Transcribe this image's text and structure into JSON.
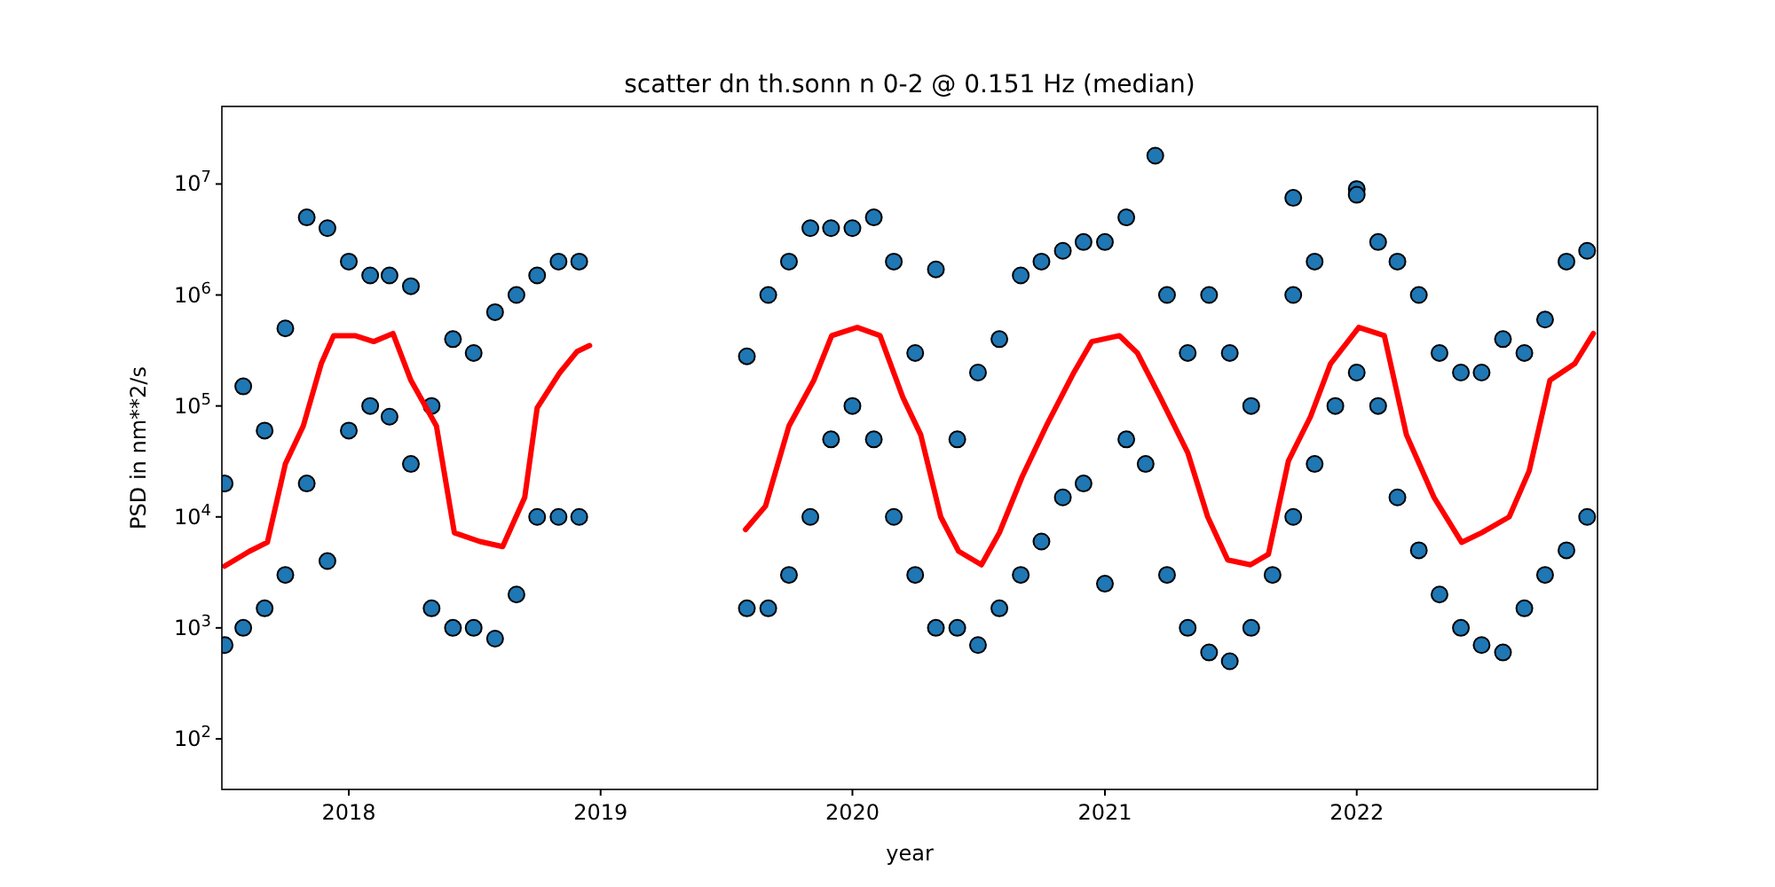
{
  "chart_data": {
    "type": "scatter",
    "title": "scatter dn th.sonn n 0-2 @ 0.151 Hz (median)",
    "xlabel": "year",
    "ylabel": "PSD in nm**2/s",
    "log": "y",
    "xlim": [
      "2017-07-01",
      "2022-12-16"
    ],
    "xticks": [
      "2018",
      "2019",
      "2020",
      "2021",
      "2022"
    ],
    "ylim": [
      35,
      50000000
    ],
    "yticks": [
      {
        "value": 100,
        "label": "10$^{2}$"
      },
      {
        "value": 1000,
        "label": "10$^{3}$"
      },
      {
        "value": 10000,
        "label": "10$^{4}$"
      },
      {
        "value": 100000,
        "label": "10$^{5}$"
      },
      {
        "value": 1000000,
        "label": "10$^{6}$"
      },
      {
        "value": 10000000,
        "label": "10$^{7}$"
      }
    ],
    "series": [
      {
        "color": "#1f77b4",
        "marker": "circle",
        "x": [
          "2017-07-05",
          "2017-07-05",
          "2017-08-01",
          "2017-08-01",
          "2017-09-01",
          "2017-09-01",
          "2017-10-01",
          "2017-10-01",
          "2017-11-01",
          "2017-11-01",
          "2017-12-01",
          "2017-12-01",
          "2018-01-01",
          "2018-01-01",
          "2018-02-01",
          "2018-02-01",
          "2018-03-01",
          "2018-03-01",
          "2018-04-01",
          "2018-04-01",
          "2018-05-01",
          "2018-05-01",
          "2018-06-01",
          "2018-06-01",
          "2018-07-01",
          "2018-07-01",
          "2018-08-01",
          "2018-08-01",
          "2018-09-01",
          "2018-09-01",
          "2018-10-01",
          "2018-10-01",
          "2018-11-01",
          "2018-11-01",
          "2018-12-01",
          "2018-12-01",
          "2019-08-01",
          "2019-08-01",
          "2019-09-01",
          "2019-09-01",
          "2019-10-01",
          "2019-10-01",
          "2019-11-01",
          "2019-11-01",
          "2019-12-01",
          "2019-12-01",
          "2020-01-01",
          "2020-01-01",
          "2020-02-01",
          "2020-02-01",
          "2020-03-01",
          "2020-03-01",
          "2020-04-01",
          "2020-04-01",
          "2020-05-01",
          "2020-05-01",
          "2020-06-01",
          "2020-06-01",
          "2020-07-01",
          "2020-07-01",
          "2020-08-01",
          "2020-08-01",
          "2020-09-01",
          "2020-09-01",
          "2020-10-01",
          "2020-10-01",
          "2020-11-01",
          "2020-11-01",
          "2020-12-01",
          "2020-12-01",
          "2021-01-01",
          "2021-01-01",
          "2021-02-01",
          "2021-02-01",
          "2021-03-15",
          "2021-03-01",
          "2021-04-01",
          "2021-04-01",
          "2021-05-01",
          "2021-05-01",
          "2021-06-01",
          "2021-06-01",
          "2021-07-01",
          "2021-07-01",
          "2021-08-01",
          "2021-08-01",
          "2021-10-01",
          "2021-09-01",
          "2021-10-01",
          "2021-10-01",
          "2021-11-01",
          "2021-11-01",
          "2022-01-01",
          "2021-12-01",
          "2022-01-01",
          "2022-01-01",
          "2022-02-01",
          "2022-02-01",
          "2022-03-01",
          "2022-03-01",
          "2022-04-01",
          "2022-04-01",
          "2022-05-01",
          "2022-05-01",
          "2022-06-01",
          "2022-06-01",
          "2022-07-01",
          "2022-07-01",
          "2022-08-01",
          "2022-08-01",
          "2022-09-01",
          "2022-09-01",
          "2022-10-01",
          "2022-10-01",
          "2022-11-01",
          "2022-11-01",
          "2022-12-01",
          "2022-12-01"
        ],
        "values": [
          20000,
          700,
          150000,
          1000,
          60000,
          1500,
          500000,
          3000,
          5000000,
          20000,
          4000000,
          4000,
          2000000,
          60000,
          1500000,
          100000,
          1500000,
          80000,
          1200000,
          30000,
          100000,
          1500,
          400000,
          1000,
          300000,
          1000,
          700000,
          800,
          1000000,
          2000,
          1500000,
          10000,
          2000000,
          10000,
          2000000,
          10000,
          280000,
          1500,
          1000000,
          1500,
          2000000,
          3000,
          4000000,
          10000,
          4000000,
          50000,
          4000000,
          100000,
          5000000,
          50000,
          2000000,
          10000,
          300000,
          3000,
          1700000,
          1000,
          50000,
          1000,
          200000,
          700,
          400000,
          1500,
          1500000,
          3000,
          2000000,
          6000,
          2500000,
          15000,
          3000000,
          20000,
          3000000,
          2500,
          5000000,
          50000,
          18000000,
          30000,
          1000000,
          3000,
          300000,
          1000,
          1000000,
          600,
          300000,
          500,
          100000,
          1000,
          7500000,
          3000,
          1000000,
          10000,
          2000000,
          30000,
          9000000,
          100000,
          8000000,
          200000,
          3000000,
          100000,
          2000000,
          15000,
          1000000,
          5000,
          300000,
          2000,
          200000,
          1000,
          200000,
          700,
          400000,
          600,
          300000,
          1500,
          600000,
          3000,
          2000000,
          5000,
          2500000,
          10000
        ]
      },
      {
        "type": "line",
        "color": "#ff0000",
        "x": [
          "2017-07-05",
          "2017-08-10",
          "2017-09-05",
          "2017-10-01",
          "2017-10-27",
          "2017-11-22",
          "2017-12-10",
          "2018-01-10",
          "2018-02-06",
          "2018-03-06",
          "2018-04-01",
          "2018-05-08",
          "2018-06-03",
          "2018-07-10",
          "2018-08-12",
          "2018-09-13",
          "2018-10-01",
          "2018-11-03",
          "2018-11-28",
          "2018-12-16",
          "2019-04-01",
          "2019-07-30",
          "2019-08-28",
          "2019-10-01",
          "2019-11-06",
          "2019-12-02",
          "2020-01-08",
          "2020-02-10",
          "2020-03-14",
          "2020-04-09",
          "2020-05-08",
          "2020-06-03",
          "2020-07-06",
          "2020-08-01",
          "2020-09-03",
          "2020-10-08",
          "2020-11-17",
          "2020-12-13",
          "2021-01-22",
          "2021-02-17",
          "2021-03-22",
          "2021-05-01",
          "2021-05-30",
          "2021-06-28",
          "2021-07-31",
          "2021-08-26",
          "2021-09-24",
          "2021-10-26",
          "2021-11-24",
          "2022-01-04",
          "2022-02-10",
          "2022-03-14",
          "2022-04-23",
          "2022-06-02",
          "2022-07-01",
          "2022-08-10",
          "2022-09-08",
          "2022-10-08",
          "2022-11-13",
          "2022-12-10"
        ],
        "values": [
          3600,
          4900,
          5900,
          30000,
          66000,
          240000,
          430000,
          430000,
          380000,
          450000,
          170000,
          66000,
          7200,
          6000,
          5400,
          15000,
          96000,
          200000,
          310000,
          350000,
          null,
          7700,
          12500,
          66000,
          170000,
          430000,
          510000,
          430000,
          120000,
          55000,
          10000,
          4900,
          3700,
          7200,
          23000,
          66000,
          200000,
          380000,
          430000,
          300000,
          120000,
          38000,
          10000,
          4100,
          3700,
          4600,
          32000,
          80000,
          240000,
          510000,
          430000,
          55000,
          15000,
          5900,
          7200,
          10000,
          26000,
          170000,
          240000,
          450000
        ]
      }
    ]
  }
}
